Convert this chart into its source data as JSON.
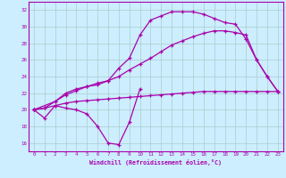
{
  "xlabel": "Windchill (Refroidissement éolien,°C)",
  "background_color": "#cceeff",
  "grid_color": "#aacccc",
  "line_color": "#aa00aa",
  "xlim": [
    -0.5,
    23.5
  ],
  "ylim": [
    15.0,
    33.0
  ],
  "yticks": [
    16,
    18,
    20,
    22,
    24,
    26,
    28,
    30,
    32
  ],
  "xticks": [
    0,
    1,
    2,
    3,
    4,
    5,
    6,
    7,
    8,
    9,
    10,
    11,
    12,
    13,
    14,
    15,
    16,
    17,
    18,
    19,
    20,
    21,
    22,
    23
  ],
  "line1_x": [
    0,
    1,
    2,
    3,
    4,
    5,
    6,
    7,
    8,
    9,
    10
  ],
  "line1_y": [
    20,
    19,
    20.5,
    20.2,
    20,
    19.5,
    18,
    16,
    15.8,
    18.5,
    22.5
  ],
  "line2_x": [
    0,
    1,
    2,
    3,
    4,
    5,
    6,
    7,
    8,
    9,
    10,
    11,
    12,
    13,
    14,
    15,
    16,
    17,
    18,
    19,
    20,
    21,
    22,
    23
  ],
  "line2_y": [
    20,
    20.2,
    20.5,
    20.8,
    21.0,
    21.1,
    21.2,
    21.3,
    21.4,
    21.5,
    21.6,
    21.7,
    21.8,
    21.9,
    22.0,
    22.1,
    22.2,
    22.2,
    22.2,
    22.2,
    22.2,
    22.2,
    22.2,
    22.2
  ],
  "line3_x": [
    0,
    1,
    2,
    3,
    4,
    5,
    6,
    7,
    8,
    9,
    10,
    11,
    12,
    13,
    14,
    15,
    16,
    17,
    18,
    19,
    20,
    21,
    22,
    23
  ],
  "line3_y": [
    20,
    20.2,
    21.0,
    22.0,
    22.5,
    22.8,
    23.0,
    23.5,
    25.0,
    26.2,
    29.0,
    30.8,
    31.3,
    31.8,
    31.8,
    31.8,
    31.5,
    31.0,
    30.5,
    30.3,
    28.5,
    26.0,
    24.0,
    22.2
  ],
  "line4_x": [
    0,
    2,
    3,
    4,
    5,
    6,
    7,
    8,
    9,
    10,
    11,
    12,
    13,
    14,
    15,
    16,
    17,
    18,
    19,
    20,
    21,
    22,
    23
  ],
  "line4_y": [
    20,
    21.0,
    21.8,
    22.3,
    22.8,
    23.2,
    23.5,
    24.0,
    24.8,
    25.5,
    26.2,
    27.0,
    27.8,
    28.3,
    28.8,
    29.2,
    29.5,
    29.5,
    29.3,
    29.0,
    26.0,
    24.0,
    22.2
  ]
}
